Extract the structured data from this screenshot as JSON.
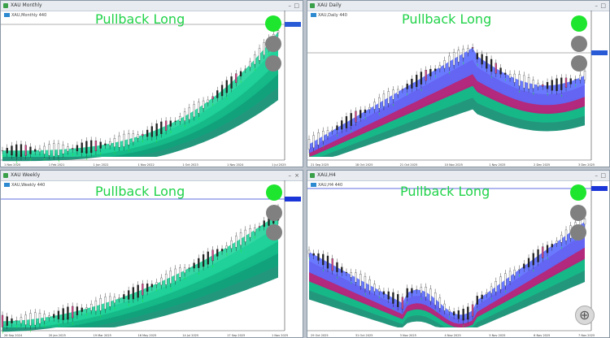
{
  "windows": [
    {
      "title": "XAU Monthly",
      "legend": "XAU,Monthly  440",
      "banner": "Pullback Long",
      "price_tag": "",
      "dates": [
        "1 Nov 2020",
        "1 Feb 2021",
        "1 Jun 2022",
        "1 Nov 2022",
        "1 Oct 2023",
        "1 Nov 2024",
        "1 Jul 2025"
      ],
      "prices": [
        "",
        "",
        "",
        "",
        "",
        ""
      ]
    },
    {
      "title": "XAU Daily",
      "legend": "XAU,Daily  440",
      "banner": "Pullback Long",
      "price_tag": "",
      "dates": [
        "21 Sep 2025",
        "18 Oct 2025",
        "21 Oct 2025",
        "10 Nov 2025",
        "1 Nov 2025",
        "2 Dec 2025",
        "3 Dec 2025"
      ],
      "prices": [
        "",
        "",
        "",
        "",
        "",
        "",
        ""
      ]
    },
    {
      "title": "XAU Weekly",
      "legend": "XAU,Weekly  440",
      "banner": "Pullback Long",
      "price_tag": "",
      "dates": [
        "26 Sep 2024",
        "20 Jan 2025",
        "19 Mar 2025",
        "16 May 2025",
        "14 Jul 2025",
        "17 Sep 2025",
        "1 Nov 2025"
      ],
      "prices": [
        "",
        "",
        "",
        "",
        "",
        ""
      ]
    },
    {
      "title": "XAU,H4",
      "legend": "XAU,H4  440",
      "banner": "Pullback Long",
      "price_tag": "",
      "dates": [
        "29 Oct 2025",
        "31 Oct 2025",
        "3 Nov 2025",
        "4 Nov 2025",
        "5 Nov 2025",
        "6 Nov 2025",
        "7 Nov 2025"
      ],
      "prices": [
        "",
        "",
        "",
        "",
        "",
        ""
      ]
    }
  ],
  "colors": {
    "ribbon_up": "#12b890",
    "ribbon_down": "#c2187a",
    "ribbon_blue": "#5a6cff",
    "candle_up": "#2d2d2d",
    "candle_down": "#d34a8a",
    "banner_text": "#22d34a",
    "signal_green": "#1ee62e",
    "signal_gray": "#808080"
  },
  "icons": [
    "window-icon",
    "minimize-icon",
    "maximize-icon",
    "close-icon",
    "zoom-icon"
  ]
}
